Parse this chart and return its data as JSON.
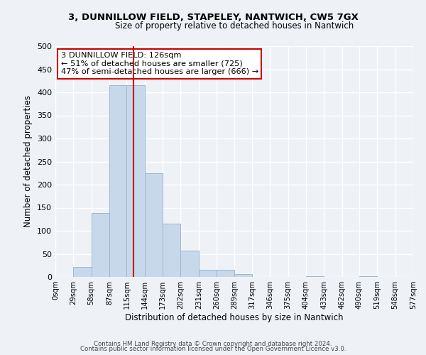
{
  "title": "3, DUNNILLOW FIELD, STAPELEY, NANTWICH, CW5 7GX",
  "subtitle": "Size of property relative to detached houses in Nantwich",
  "xlabel": "Distribution of detached houses by size in Nantwich",
  "ylabel": "Number of detached properties",
  "bar_color": "#c8d8eb",
  "bar_edge_color": "#9ab8d0",
  "bar_heights": [
    0,
    22,
    138,
    415,
    415,
    225,
    115,
    57,
    15,
    15,
    6,
    0,
    0,
    0,
    1,
    0,
    0,
    1,
    0,
    0
  ],
  "bin_edges": [
    0,
    29,
    58,
    87,
    115,
    144,
    173,
    202,
    231,
    260,
    289,
    317,
    346,
    375,
    404,
    433,
    462,
    490,
    519,
    548,
    577
  ],
  "tick_labels": [
    "0sqm",
    "29sqm",
    "58sqm",
    "87sqm",
    "115sqm",
    "144sqm",
    "173sqm",
    "202sqm",
    "231sqm",
    "260sqm",
    "289sqm",
    "317sqm",
    "346sqm",
    "375sqm",
    "404sqm",
    "433sqm",
    "462sqm",
    "490sqm",
    "519sqm",
    "548sqm",
    "577sqm"
  ],
  "ylim": [
    0,
    500
  ],
  "yticks": [
    0,
    50,
    100,
    150,
    200,
    250,
    300,
    350,
    400,
    450,
    500
  ],
  "vline_x": 126,
  "vline_color": "#cc0000",
  "annotation_title": "3 DUNNILLOW FIELD: 126sqm",
  "annotation_line1": "← 51% of detached houses are smaller (725)",
  "annotation_line2": "47% of semi-detached houses are larger (666) →",
  "annotation_box_color": "#ffffff",
  "annotation_box_edge": "#cc0000",
  "footer1": "Contains HM Land Registry data © Crown copyright and database right 2024.",
  "footer2": "Contains public sector information licensed under the Open Government Licence v3.0.",
  "background_color": "#eef2f7",
  "grid_color": "#ffffff"
}
